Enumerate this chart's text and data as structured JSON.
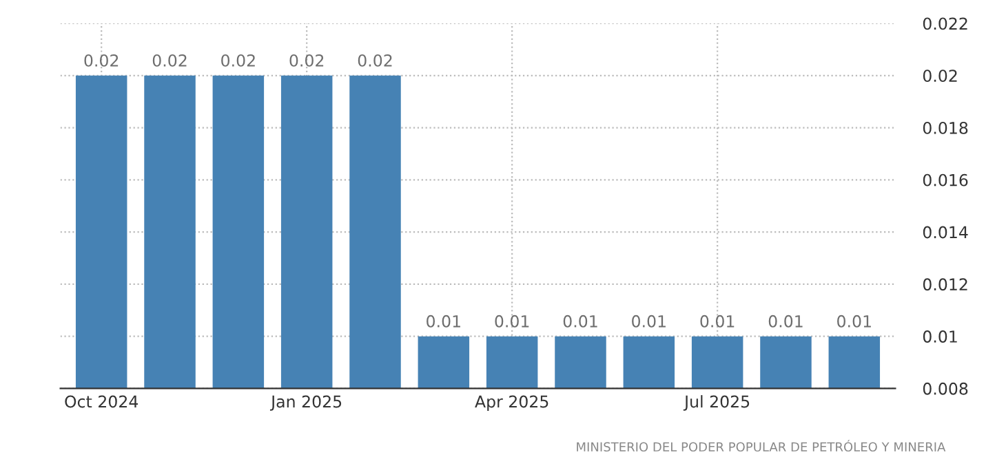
{
  "chart_data": {
    "type": "bar",
    "categories": [
      "Oct 2024",
      null,
      null,
      "Jan 2025",
      null,
      null,
      "Apr 2025",
      null,
      null,
      "Jul 2025",
      null,
      null
    ],
    "values": [
      0.02,
      0.02,
      0.02,
      0.02,
      0.02,
      0.01,
      0.01,
      0.01,
      0.01,
      0.01,
      0.01,
      0.01
    ],
    "color": "#4682b4",
    "ylim": [
      0.008,
      0.022
    ],
    "yticks": [
      0.008,
      0.01,
      0.012,
      0.014,
      0.016,
      0.018,
      0.02,
      0.022
    ],
    "grid": true,
    "data_labels": true,
    "annotations": [
      "MINISTERIO DEL PODER POPULAR DE PETRÓLEO Y MINERIA"
    ]
  }
}
